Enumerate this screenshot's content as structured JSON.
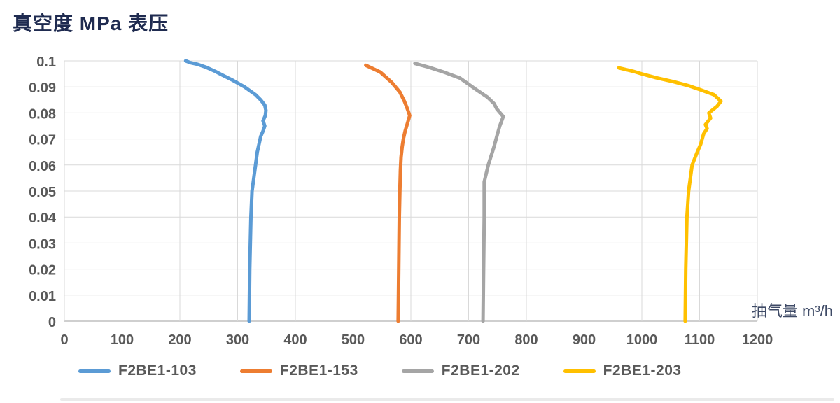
{
  "title": "真空度 MPa 表压",
  "chart_data": {
    "type": "line",
    "title": "真空度 MPa 表压",
    "xlabel": "抽气量 m³/h",
    "ylabel": "真空度 MPa 表压",
    "xlim": [
      0,
      1200
    ],
    "ylim": [
      0,
      0.1
    ],
    "grid": true,
    "legend_position": "bottom",
    "x_ticks": [
      0,
      100,
      200,
      300,
      400,
      500,
      600,
      700,
      800,
      900,
      1000,
      1100,
      1200
    ],
    "y_ticks": [
      "0.1",
      "0.09",
      "0.08",
      "0.07",
      "0.06",
      "0.05",
      "0.04",
      "0.03",
      "0.02",
      "0.01",
      "0"
    ],
    "series": [
      {
        "name": "F2BE1-103",
        "color": "#5B9BD5",
        "points": [
          [
            0,
            320
          ],
          [
            0.02,
            321
          ],
          [
            0.04,
            323
          ],
          [
            0.05,
            325
          ],
          [
            0.06,
            331
          ],
          [
            0.065,
            334
          ],
          [
            0.069,
            338
          ],
          [
            0.071,
            340
          ],
          [
            0.073,
            344
          ],
          [
            0.075,
            347
          ],
          [
            0.077,
            344
          ],
          [
            0.079,
            348
          ],
          [
            0.081,
            349
          ],
          [
            0.083,
            347
          ],
          [
            0.085,
            340
          ],
          [
            0.087,
            331
          ],
          [
            0.09,
            312
          ],
          [
            0.0925,
            292
          ],
          [
            0.0945,
            274
          ],
          [
            0.096,
            261
          ],
          [
            0.0975,
            246
          ],
          [
            0.0987,
            230
          ],
          [
            0.0993,
            218
          ],
          [
            0.1,
            210
          ]
        ]
      },
      {
        "name": "F2BE1-153",
        "color": "#ED7D31",
        "points": [
          [
            0,
            578
          ],
          [
            0.02,
            579
          ],
          [
            0.04,
            580
          ],
          [
            0.05,
            581
          ],
          [
            0.058,
            582
          ],
          [
            0.063,
            583
          ],
          [
            0.067,
            585
          ],
          [
            0.07,
            587
          ],
          [
            0.073,
            590
          ],
          [
            0.0767,
            595
          ],
          [
            0.079,
            598
          ],
          [
            0.0816,
            594
          ],
          [
            0.0844,
            589
          ],
          [
            0.088,
            581
          ],
          [
            0.0917,
            567
          ],
          [
            0.0957,
            547
          ],
          [
            0.0983,
            522
          ]
        ]
      },
      {
        "name": "F2BE1-202",
        "color": "#A5A5A5",
        "points": [
          [
            0,
            725
          ],
          [
            0.02,
            726
          ],
          [
            0.04,
            727
          ],
          [
            0.0535,
            727
          ],
          [
            0.06,
            734
          ],
          [
            0.067,
            744
          ],
          [
            0.072,
            750
          ],
          [
            0.075,
            754
          ],
          [
            0.0786,
            760
          ],
          [
            0.0815,
            749
          ],
          [
            0.0836,
            744
          ],
          [
            0.086,
            733
          ],
          [
            0.089,
            713
          ],
          [
            0.0934,
            685
          ],
          [
            0.0957,
            657
          ],
          [
            0.0976,
            630
          ],
          [
            0.099,
            607
          ]
        ]
      },
      {
        "name": "F2BE1-203",
        "color": "#FFC000",
        "points": [
          [
            0,
            1075
          ],
          [
            0.02,
            1076
          ],
          [
            0.04,
            1078
          ],
          [
            0.05,
            1081
          ],
          [
            0.06,
            1087
          ],
          [
            0.065,
            1096
          ],
          [
            0.068,
            1102
          ],
          [
            0.072,
            1107
          ],
          [
            0.074,
            1113
          ],
          [
            0.0755,
            1110
          ],
          [
            0.078,
            1119
          ],
          [
            0.08,
            1116
          ],
          [
            0.0825,
            1130
          ],
          [
            0.0845,
            1137
          ],
          [
            0.087,
            1125
          ],
          [
            0.089,
            1100
          ],
          [
            0.0905,
            1080
          ],
          [
            0.092,
            1055
          ],
          [
            0.0935,
            1025
          ],
          [
            0.095,
            1000
          ],
          [
            0.096,
            985
          ],
          [
            0.0973,
            960
          ]
        ]
      }
    ],
    "colors": {
      "gridline": "#D9D9D9",
      "axis_line": "#BFBFBF",
      "tick_text": "#595959",
      "title_text": "#1F2B50",
      "axis_title_text": "#3E4A66"
    }
  }
}
